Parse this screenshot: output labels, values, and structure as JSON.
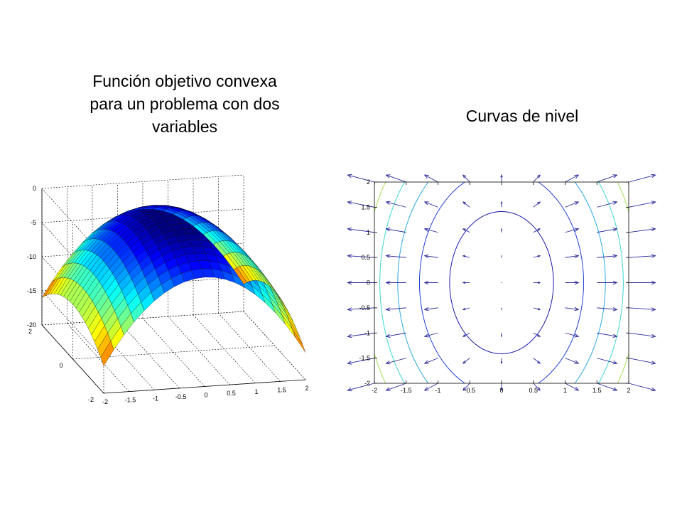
{
  "slide": {
    "left_title_lines": [
      "Función objetivo convexa",
      "para un problema con dos",
      "variables"
    ],
    "right_title": "Curvas de nivel"
  },
  "chart_data": [
    {
      "type": "surface",
      "title": "Función objetivo convexa para un problema con dos variables",
      "x": {
        "range": [
          -2,
          2
        ],
        "ticks": [
          "-2",
          "-1.5",
          "-1",
          "-0.5",
          "0",
          "0.5",
          "1",
          "1.5",
          "2"
        ]
      },
      "y": {
        "range": [
          -2,
          2
        ],
        "ticks": [
          "-2",
          "0",
          "2"
        ]
      },
      "z": {
        "range": [
          -20,
          0
        ],
        "ticks": [
          "0",
          "-5",
          "-10",
          "-15",
          "-20"
        ]
      },
      "grid": true,
      "colormap": "jet",
      "surface": "z = -(3*x^2 + y^2)"
    },
    {
      "type": "contour",
      "title": "Curvas de nivel",
      "x": {
        "range": [
          -2,
          2
        ],
        "ticks": [
          "-2",
          "-1.5",
          "-1",
          "-0.5",
          "0",
          "0.5",
          "1",
          "1.5",
          "2"
        ]
      },
      "y": {
        "range": [
          -2,
          2
        ],
        "ticks": [
          "-2",
          "-1.5",
          "-1",
          "-0.5",
          "0",
          "0.5",
          "1",
          "1.5",
          "2"
        ]
      },
      "levels": [
        2,
        5,
        8,
        11,
        14,
        17,
        20
      ],
      "level_colors": [
        "#1a1aa8",
        "#1f3fd0",
        "#2aa7e0",
        "#3cd4d4",
        "#a6e05a",
        "#f0c020",
        "#e8651f",
        "#b02010"
      ],
      "quiver": {
        "spacing": 0.5,
        "field": "gradient",
        "color": "#2a2a9a"
      },
      "grid": false
    }
  ]
}
